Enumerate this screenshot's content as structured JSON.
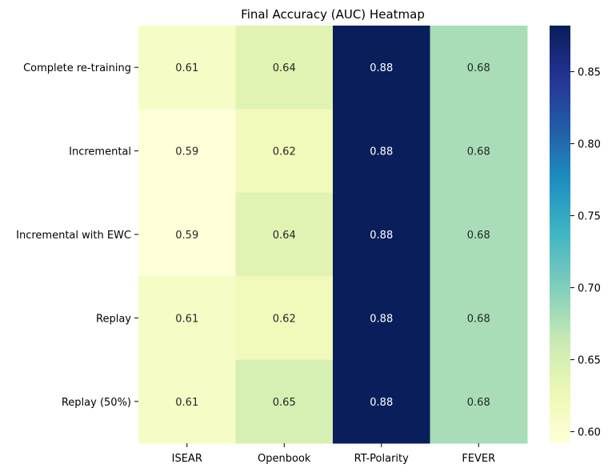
{
  "chart_data": {
    "type": "heatmap",
    "title": "Final Accuracy (AUC) Heatmap",
    "xlabel": "",
    "ylabel": "",
    "x_categories": [
      "ISEAR",
      "Openbook",
      "RT-Polarity",
      "FEVER"
    ],
    "y_categories": [
      "Complete re-training",
      "Incremental",
      "Incremental with EWC",
      "Replay",
      "Replay (50%)"
    ],
    "values": [
      [
        0.61,
        0.64,
        0.88,
        0.68
      ],
      [
        0.59,
        0.62,
        0.88,
        0.68
      ],
      [
        0.59,
        0.64,
        0.88,
        0.68
      ],
      [
        0.61,
        0.62,
        0.88,
        0.68
      ],
      [
        0.61,
        0.65,
        0.88,
        0.68
      ]
    ],
    "value_labels": [
      [
        "0.61",
        "0.64",
        "0.88",
        "0.68"
      ],
      [
        "0.59",
        "0.62",
        "0.88",
        "0.68"
      ],
      [
        "0.59",
        "0.64",
        "0.88",
        "0.68"
      ],
      [
        "0.61",
        "0.62",
        "0.88",
        "0.68"
      ],
      [
        "0.61",
        "0.65",
        "0.88",
        "0.68"
      ]
    ],
    "colormap": "YlGnBu",
    "colorbar": {
      "range": [
        0.592,
        0.882
      ],
      "ticks": [
        0.6,
        0.65,
        0.7,
        0.75,
        0.8,
        0.85
      ],
      "tick_labels": [
        "0.60",
        "0.65",
        "0.70",
        "0.75",
        "0.80",
        "0.85"
      ]
    },
    "grid": false,
    "legend": "colorbar-right"
  }
}
